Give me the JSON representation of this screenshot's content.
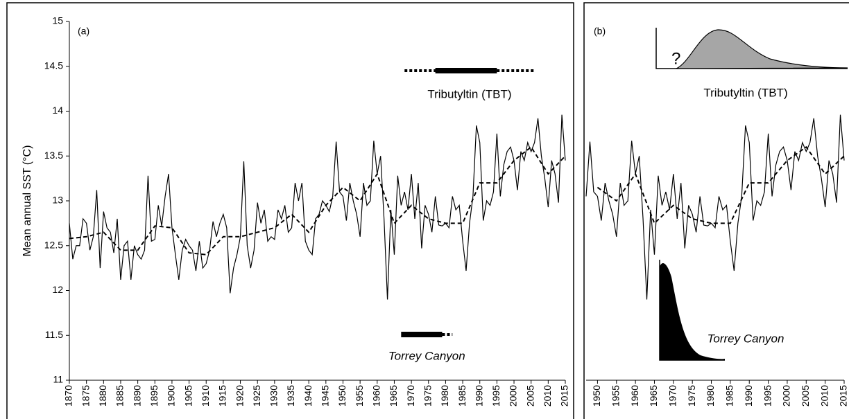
{
  "chart_data": [
    {
      "type": "line",
      "panel_label": "(a)",
      "y_label": "Mean annual SST (°C)",
      "x": [
        1870,
        1871,
        1872,
        1873,
        1874,
        1875,
        1876,
        1877,
        1878,
        1879,
        1880,
        1881,
        1882,
        1883,
        1884,
        1885,
        1886,
        1887,
        1888,
        1889,
        1890,
        1891,
        1892,
        1893,
        1894,
        1895,
        1896,
        1897,
        1898,
        1899,
        1900,
        1901,
        1902,
        1903,
        1904,
        1905,
        1906,
        1907,
        1908,
        1909,
        1910,
        1911,
        1912,
        1913,
        1914,
        1915,
        1916,
        1917,
        1918,
        1919,
        1920,
        1921,
        1922,
        1923,
        1924,
        1925,
        1926,
        1927,
        1928,
        1929,
        1930,
        1931,
        1932,
        1933,
        1934,
        1935,
        1936,
        1937,
        1938,
        1939,
        1940,
        1941,
        1942,
        1943,
        1944,
        1945,
        1946,
        1947,
        1948,
        1949,
        1950,
        1951,
        1952,
        1953,
        1954,
        1955,
        1956,
        1957,
        1958,
        1959,
        1960,
        1961,
        1962,
        1963,
        1964,
        1965,
        1966,
        1967,
        1968,
        1969,
        1970,
        1971,
        1972,
        1973,
        1974,
        1975,
        1976,
        1977,
        1978,
        1979,
        1980,
        1981,
        1982,
        1983,
        1984,
        1985,
        1986,
        1987,
        1988,
        1989,
        1990,
        1991,
        1992,
        1993,
        1994,
        1995,
        1996,
        1997,
        1998,
        1999,
        2000,
        2001,
        2002,
        2003,
        2004,
        2005,
        2006,
        2007,
        2008,
        2009,
        2010,
        2011,
        2012,
        2013,
        2014,
        2015
      ],
      "series": [
        {
          "color": "#000000",
          "style": "solid",
          "values": [
            12.75,
            12.35,
            12.5,
            12.5,
            12.8,
            12.75,
            12.45,
            12.6,
            13.12,
            12.25,
            12.88,
            12.7,
            12.65,
            12.42,
            12.8,
            12.12,
            12.5,
            12.55,
            12.12,
            12.5,
            12.4,
            12.35,
            12.45,
            13.28,
            12.55,
            12.57,
            12.95,
            12.72,
            13.05,
            13.3,
            12.7,
            12.4,
            12.12,
            12.45,
            12.57,
            12.5,
            12.45,
            12.22,
            12.55,
            12.25,
            12.3,
            12.45,
            12.77,
            12.6,
            12.75,
            12.85,
            12.7,
            11.97,
            12.25,
            12.4,
            12.6,
            13.44,
            12.5,
            12.25,
            12.45,
            12.98,
            12.75,
            12.9,
            12.55,
            12.6,
            12.57,
            12.9,
            12.8,
            12.95,
            12.65,
            12.7,
            13.2,
            13.0,
            13.2,
            12.55,
            12.45,
            12.4,
            12.8,
            12.85,
            13.0,
            12.95,
            12.88,
            13.05,
            13.66,
            13.1,
            13.05,
            12.78,
            13.2,
            13.0,
            12.85,
            12.6,
            13.2,
            12.95,
            13.0,
            13.67,
            13.3,
            13.5,
            12.8,
            11.9,
            12.9,
            12.4,
            13.28,
            12.95,
            13.1,
            12.9,
            13.3,
            12.8,
            13.2,
            12.47,
            12.95,
            12.85,
            12.65,
            13.05,
            12.73,
            12.72,
            12.75,
            12.7,
            13.05,
            12.9,
            12.95,
            12.55,
            12.22,
            12.75,
            13.05,
            13.84,
            13.65,
            12.78,
            13.0,
            12.95,
            13.1,
            13.75,
            13.05,
            13.4,
            13.55,
            13.6,
            13.45,
            13.12,
            13.55,
            13.45,
            13.65,
            13.55,
            13.65,
            13.92,
            13.5,
            13.25,
            12.93,
            13.45,
            13.3,
            12.98,
            13.96,
            13.45
          ]
        },
        {
          "color": "#000000",
          "style": "dashed",
          "x": [
            1870,
            1875,
            1880,
            1885,
            1890,
            1895,
            1900,
            1905,
            1910,
            1915,
            1920,
            1925,
            1930,
            1935,
            1940,
            1945,
            1950,
            1955,
            1960,
            1965,
            1970,
            1975,
            1980,
            1985,
            1990,
            1995,
            2000,
            2005,
            2010,
            2015
          ],
          "values": [
            12.58,
            12.6,
            12.65,
            12.45,
            12.45,
            12.72,
            12.7,
            12.42,
            12.4,
            12.6,
            12.6,
            12.65,
            12.7,
            12.85,
            12.65,
            12.95,
            13.15,
            13.0,
            13.3,
            12.75,
            12.95,
            12.8,
            12.75,
            12.75,
            13.2,
            13.2,
            13.45,
            13.6,
            13.3,
            13.5
          ]
        }
      ],
      "xlim": [
        1870,
        2015
      ],
      "xticks": [
        1870,
        1875,
        1880,
        1885,
        1890,
        1895,
        1900,
        1905,
        1910,
        1915,
        1920,
        1925,
        1930,
        1935,
        1940,
        1945,
        1950,
        1955,
        1960,
        1965,
        1970,
        1975,
        1980,
        1985,
        1990,
        1995,
        2000,
        2005,
        2010,
        2015
      ],
      "ylim": [
        11,
        15
      ],
      "yticks": [
        11,
        11.5,
        12,
        12.5,
        13,
        13.5,
        14,
        14.5,
        15
      ],
      "annotations": [
        {
          "text": "Tributyltin (TBT)",
          "dotted": [
            1968,
            2006
          ],
          "solid": [
            1977,
            1995
          ]
        },
        {
          "text": "Torrey Canyon",
          "italic": true,
          "dotted": [
            1979,
            1982
          ],
          "solid": [
            1967,
            1979
          ]
        }
      ]
    },
    {
      "type": "line",
      "panel_label": "(b)",
      "x": [
        1947,
        1948,
        1949,
        1950,
        1951,
        1952,
        1953,
        1954,
        1955,
        1956,
        1957,
        1958,
        1959,
        1960,
        1961,
        1962,
        1963,
        1964,
        1965,
        1966,
        1967,
        1968,
        1969,
        1970,
        1971,
        1972,
        1973,
        1974,
        1975,
        1976,
        1977,
        1978,
        1979,
        1980,
        1981,
        1982,
        1983,
        1984,
        1985,
        1986,
        1987,
        1988,
        1989,
        1990,
        1991,
        1992,
        1993,
        1994,
        1995,
        1996,
        1997,
        1998,
        1999,
        2000,
        2001,
        2002,
        2003,
        2004,
        2005,
        2006,
        2007,
        2008,
        2009,
        2010,
        2011,
        2012,
        2013,
        2014,
        2015
      ],
      "series": [
        {
          "color": "#000000",
          "style": "solid",
          "values": [
            13.05,
            13.66,
            13.1,
            13.05,
            12.78,
            13.2,
            13.0,
            12.85,
            12.6,
            13.2,
            12.95,
            13.0,
            13.67,
            13.3,
            13.5,
            12.8,
            11.9,
            12.9,
            12.4,
            13.28,
            12.95,
            13.1,
            12.9,
            13.3,
            12.8,
            13.2,
            12.47,
            12.95,
            12.85,
            12.65,
            13.05,
            12.73,
            12.72,
            12.75,
            12.7,
            13.05,
            12.9,
            12.95,
            12.55,
            12.22,
            12.75,
            13.05,
            13.84,
            13.65,
            12.78,
            13.0,
            12.95,
            13.1,
            13.75,
            13.05,
            13.4,
            13.55,
            13.6,
            13.45,
            13.12,
            13.55,
            13.45,
            13.65,
            13.55,
            13.65,
            13.92,
            13.5,
            13.25,
            12.93,
            13.45,
            13.3,
            12.98,
            13.96,
            13.45
          ]
        },
        {
          "color": "#000000",
          "style": "dashed",
          "x": [
            1950,
            1955,
            1960,
            1965,
            1970,
            1975,
            1980,
            1985,
            1990,
            1995,
            2000,
            2005,
            2010,
            2015
          ],
          "values": [
            13.15,
            13.0,
            13.3,
            12.75,
            12.95,
            12.8,
            12.75,
            12.75,
            13.2,
            13.2,
            13.45,
            13.6,
            13.3,
            13.5
          ]
        }
      ],
      "xlim": [
        1947,
        2015
      ],
      "xticks": [
        1950,
        1955,
        1960,
        1965,
        1970,
        1975,
        1980,
        1985,
        1990,
        1995,
        2000,
        2005,
        2010,
        2015
      ],
      "ylim": [
        11,
        15
      ],
      "annotations": [
        {
          "text": "Tributyltin (TBT)"
        },
        {
          "text": "?"
        },
        {
          "text": "Torrey Canyon",
          "italic": true
        }
      ]
    }
  ]
}
